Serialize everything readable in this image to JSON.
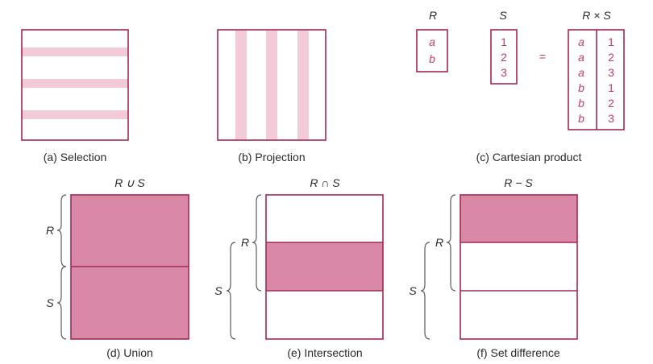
{
  "captions": {
    "selection": "(a) Selection",
    "projection": "(b) Projection",
    "cartesian": "(c) Cartesian product",
    "union": "(d) Union",
    "intersection": "(e) Intersection",
    "difference": "(f) Set difference"
  },
  "cartesian": {
    "r_header": "R",
    "s_header": "S",
    "rxs_header": "R × S",
    "equals": "=",
    "r_values": [
      "a",
      "b"
    ],
    "s_values": [
      "1",
      "2",
      "3"
    ],
    "rxs_left": [
      "a",
      "a",
      "a",
      "b",
      "b",
      "b"
    ],
    "rxs_right": [
      "1",
      "2",
      "3",
      "1",
      "2",
      "3"
    ]
  },
  "operations": {
    "union_title": "R ∪ S",
    "intersection_title": "R ∩ S",
    "difference_title": "R − S",
    "r_label": "R",
    "s_label": "S"
  },
  "colors": {
    "frame": "#a3284f",
    "highlight_light": "#f3cbd8",
    "highlight_dark": "#d988a8",
    "value_text": "#c23a68"
  }
}
